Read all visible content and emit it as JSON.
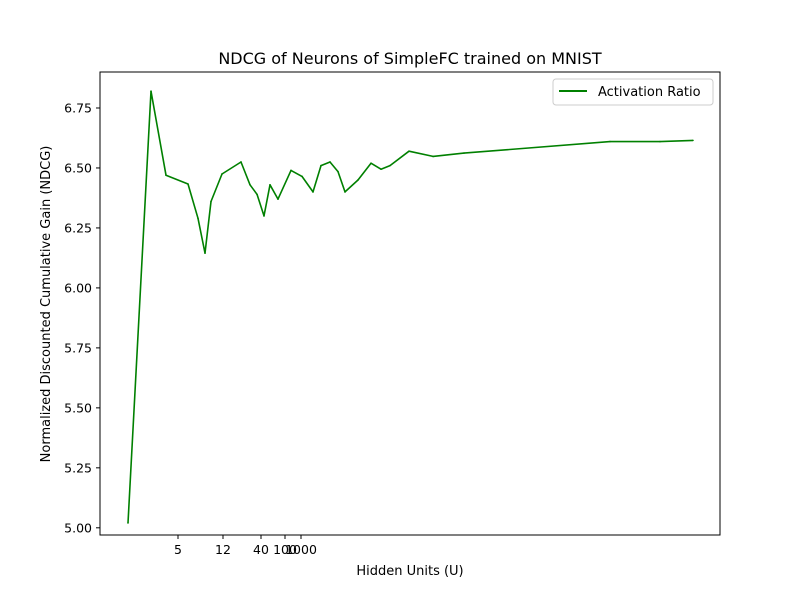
{
  "chart_data": {
    "type": "line",
    "title": "NDCG of Neurons of SimpleFC trained on MNIST",
    "xlabel": "Hidden Units (U)",
    "ylabel": "Normalized Discounted Cumulative Gain (NDCG)",
    "ylim": [
      4.97,
      6.9
    ],
    "yticks": [
      5.0,
      5.25,
      5.5,
      5.75,
      6.0,
      6.25,
      6.5,
      6.75
    ],
    "ytick_labels": [
      "5.00",
      "5.25",
      "5.50",
      "5.75",
      "6.00",
      "6.25",
      "6.50",
      "6.75"
    ],
    "xtick_labels": [
      "5",
      "12",
      "40",
      "100",
      "1000"
    ],
    "grid": false,
    "legend_position": "top-right",
    "series": [
      {
        "name": "Activation Ratio",
        "color": "#008000",
        "y": [
          5.02,
          6.82,
          6.47,
          6.433,
          6.29,
          6.145,
          6.36,
          6.475,
          6.525,
          6.43,
          6.39,
          6.3,
          6.43,
          6.37,
          6.49,
          6.465,
          6.4,
          6.51,
          6.525,
          6.485,
          6.4,
          6.45,
          6.52,
          6.495,
          6.51,
          6.57,
          6.548,
          6.562,
          6.61,
          6.61,
          6.615
        ]
      }
    ]
  }
}
